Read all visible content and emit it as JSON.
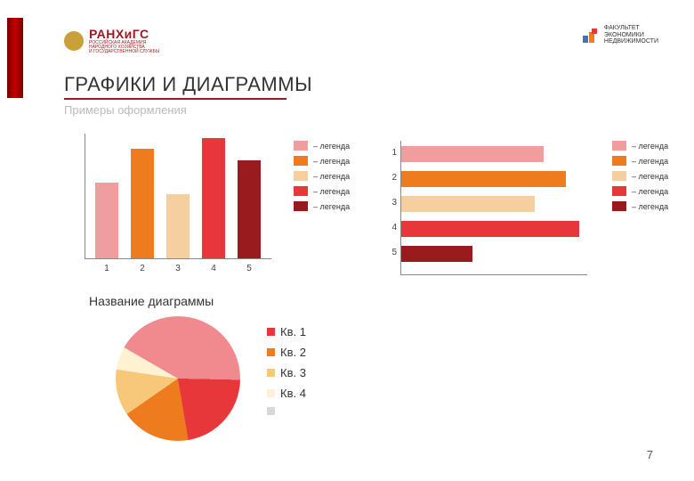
{
  "header": {
    "org_name": "РАНХиГС",
    "org_sub1": "РОССИЙСКАЯ АКАДЕМИЯ",
    "org_sub2": "НАРОДНОГО ХОЗЯЙСТВА",
    "org_sub3": "И ГОСУДАРСТВЕННОЙ СЛУЖБЫ",
    "faculty1": "ФАКУЛЬТЕТ",
    "faculty2": "ЭКОНОМИКИ",
    "faculty3": "НЕДВИЖИМОСТИ"
  },
  "title": "ГРАФИКИ И ДИАГРАММЫ",
  "subtitle": "Примеры оформления",
  "page_number": "7",
  "vbar_chart": {
    "type": "bar",
    "categories": [
      "1",
      "2",
      "3",
      "4",
      "5"
    ],
    "values": [
      85,
      123,
      72,
      135,
      110
    ],
    "max_height": 140,
    "colors": [
      "#f09da0",
      "#ee7b1d",
      "#f6cfa0",
      "#e7373b",
      "#9a1b1e"
    ],
    "legend_label": "– легенда"
  },
  "hbar_chart": {
    "type": "hbar",
    "categories": [
      "1",
      "2",
      "3",
      "4",
      "5"
    ],
    "values": [
      160,
      185,
      150,
      200,
      80
    ],
    "max_width": 205,
    "colors": [
      "#f09da0",
      "#ee7b1d",
      "#f6cfa0",
      "#e7373b",
      "#9a1b1e"
    ],
    "legend_label": "– легенда"
  },
  "pie_chart": {
    "type": "pie",
    "title": "Название диаграммы",
    "labels": [
      "Кв. 1",
      "Кв. 2",
      "Кв. 3",
      "Кв. 4",
      ""
    ],
    "values": [
      42,
      22,
      18,
      12,
      6
    ],
    "colors": [
      "#f18a8e",
      "#e7373b",
      "#ee7b1d",
      "#f7c77a",
      "#fff2d2"
    ],
    "legend_sw_colors": [
      "#e7373b",
      "#ee7b1d",
      "#f7c77a",
      "#fff2d2",
      "#d8d8d8"
    ]
  }
}
